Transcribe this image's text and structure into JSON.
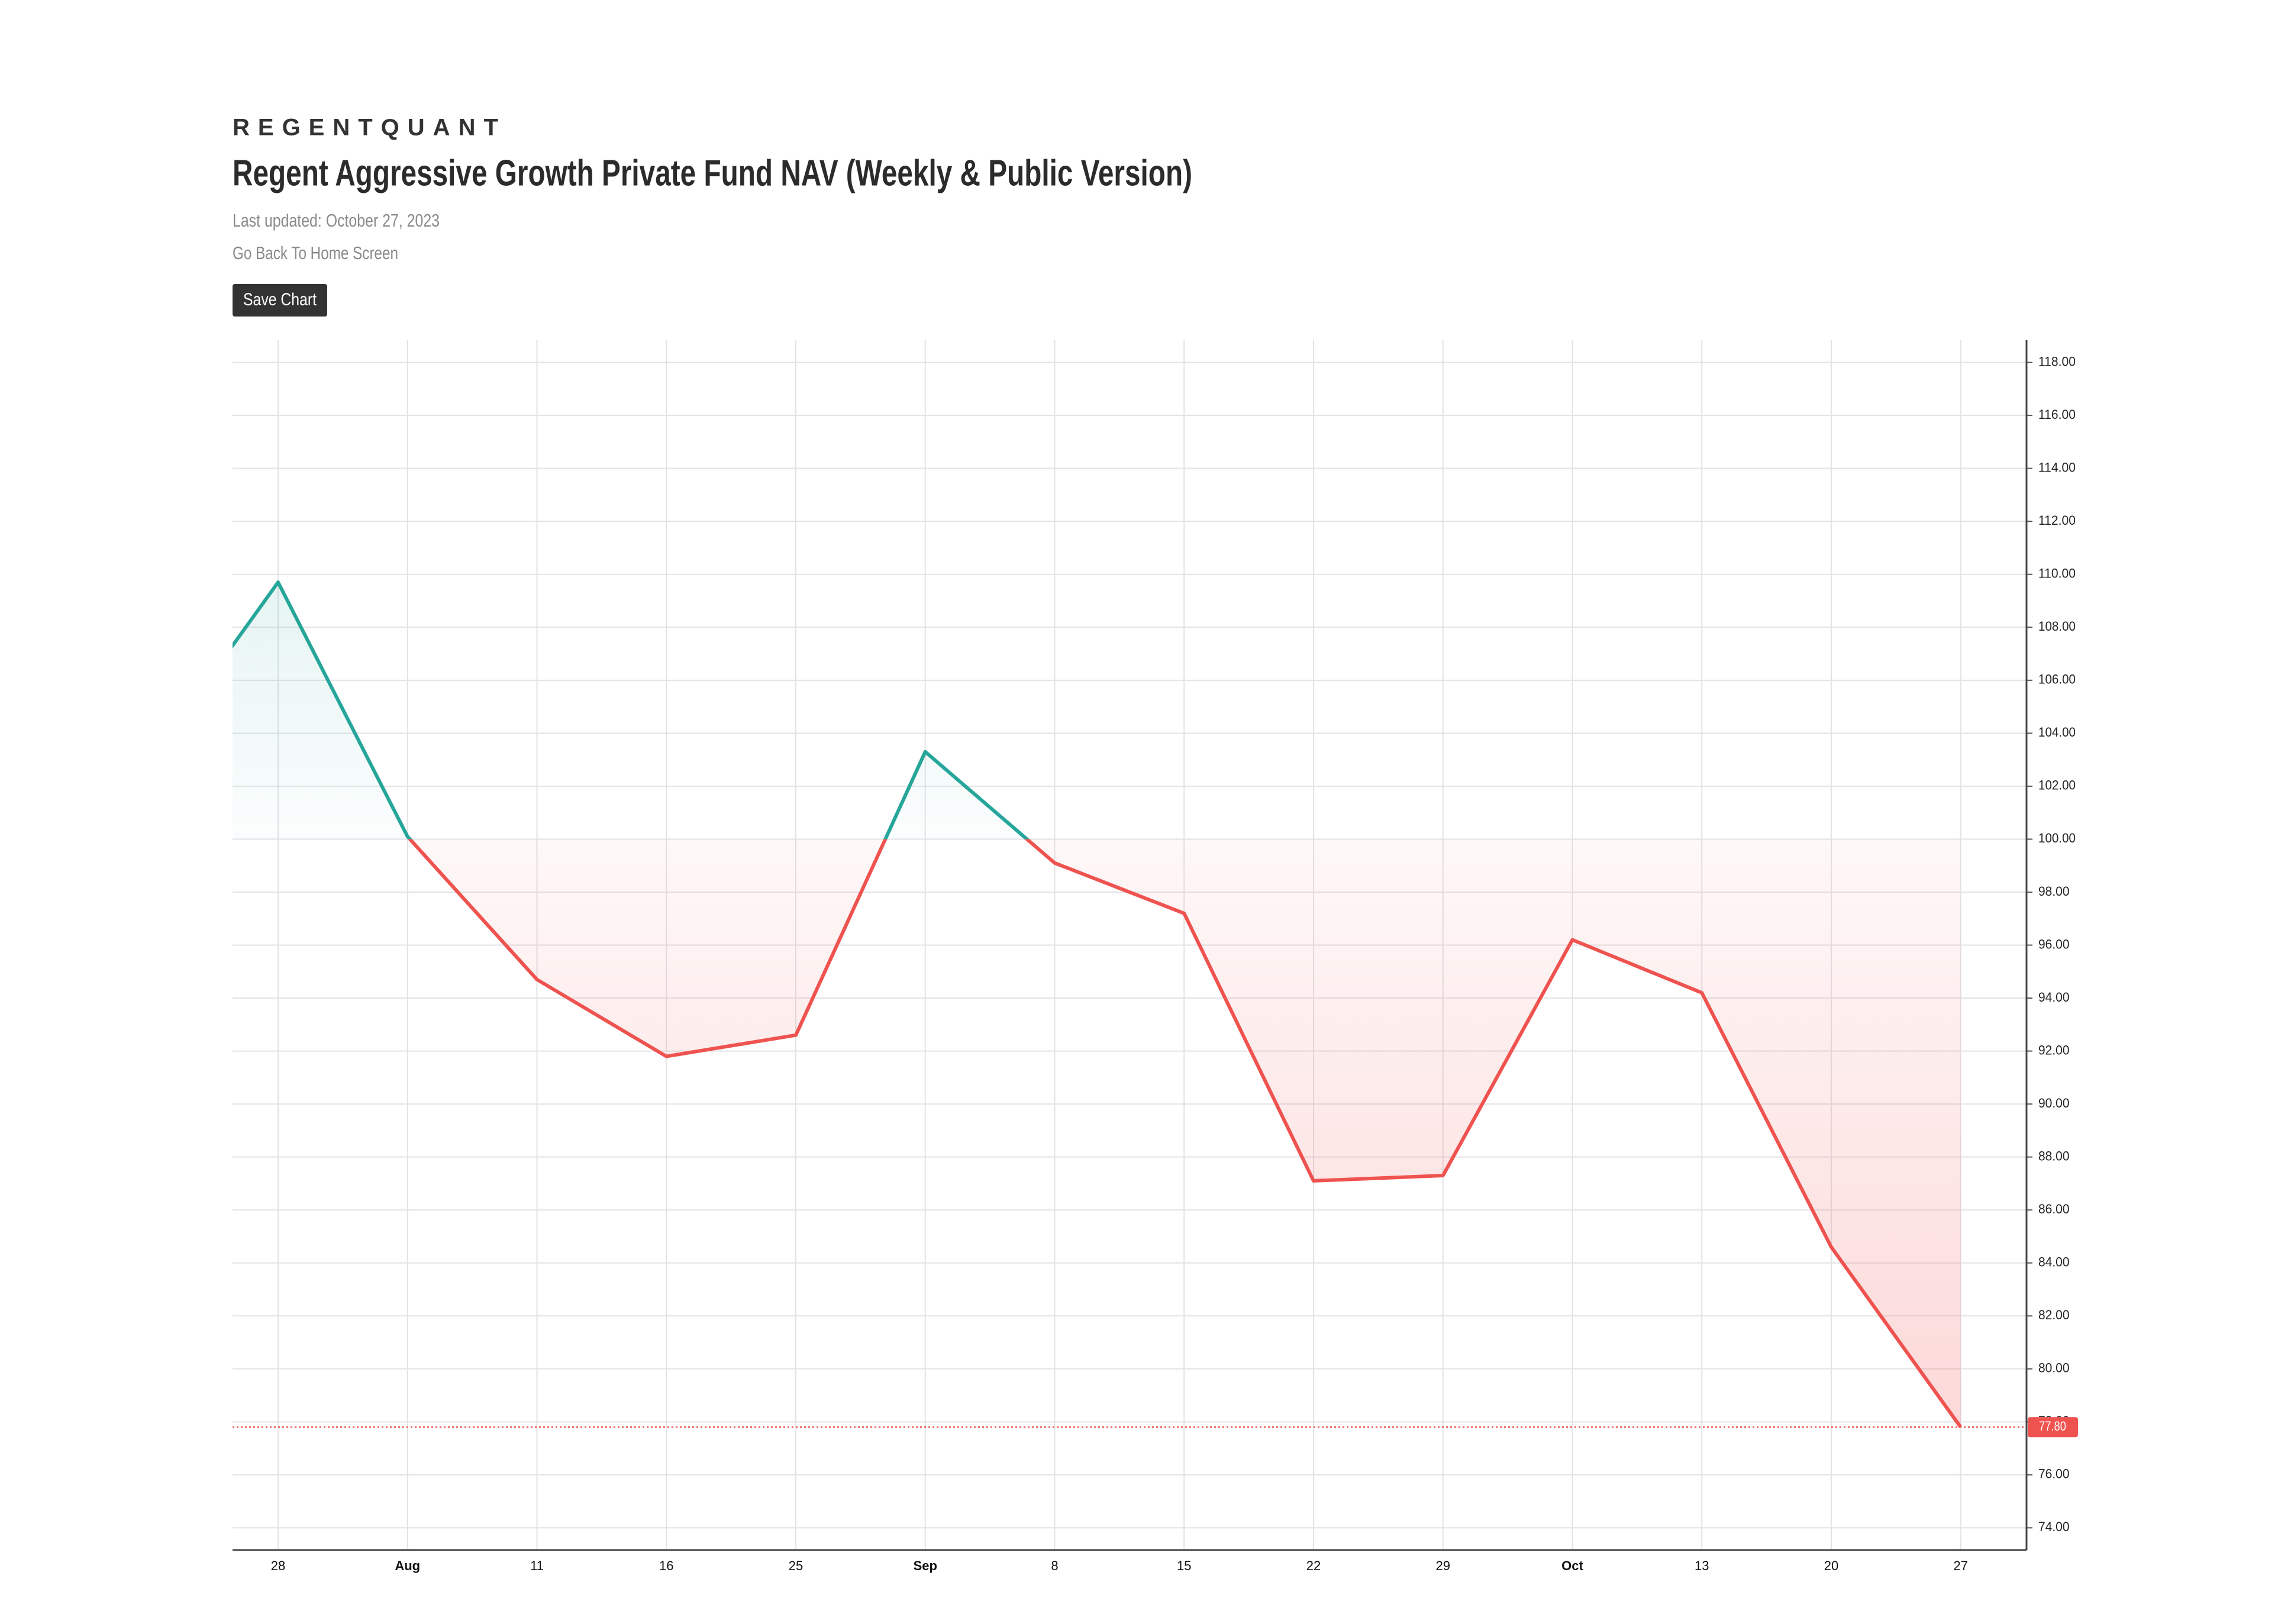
{
  "header": {
    "brand": "REGENTQUANT",
    "title": "Regent Aggressive Growth Private Fund NAV (Weekly & Public Version)",
    "updated": "Last updated: October 27, 2023",
    "back_link": "Go Back To Home Screen",
    "button": "Save Chart"
  },
  "chart_data": {
    "type": "baseline-area",
    "categories": [
      null,
      "28",
      "Aug",
      "11",
      "16",
      "25",
      "Sep",
      "8",
      "15",
      "22",
      "29",
      "Oct",
      "13",
      "20",
      "27"
    ],
    "values": [
      102.9,
      109.7,
      100.1,
      94.7,
      91.8,
      92.6,
      103.3,
      99.1,
      97.2,
      87.1,
      87.3,
      96.2,
      94.2,
      84.6,
      77.8
    ],
    "value_labels": [
      null,
      null,
      null,
      null,
      null,
      null,
      null,
      null,
      null,
      null,
      null,
      null,
      null,
      null,
      "77.80"
    ],
    "baseline": 100,
    "up_color": "#26a69a",
    "down_color": "#ef5350",
    "ylim": [
      73.16,
      118.84
    ],
    "yticks": [
      {
        "value": 74,
        "label": "74.00"
      },
      {
        "value": 76,
        "label": "76.00"
      },
      {
        "value": 78,
        "label": "78.00"
      },
      {
        "value": 80,
        "label": "80.00"
      },
      {
        "value": 82,
        "label": "82.00"
      },
      {
        "value": 84,
        "label": "84.00"
      },
      {
        "value": 86,
        "label": "86.00"
      },
      {
        "value": 88,
        "label": "88.00"
      },
      {
        "value": 90,
        "label": "90.00"
      },
      {
        "value": 92,
        "label": "92.00"
      },
      {
        "value": 94,
        "label": "94.00"
      },
      {
        "value": 96,
        "label": "96.00"
      },
      {
        "value": 98,
        "label": "98.00"
      },
      {
        "value": 100,
        "label": "100.00"
      },
      {
        "value": 102,
        "label": "102.00"
      },
      {
        "value": 104,
        "label": "104.00"
      },
      {
        "value": 106,
        "label": "106.00"
      },
      {
        "value": 108,
        "label": "108.00"
      },
      {
        "value": 110,
        "label": "110.00"
      },
      {
        "value": 112,
        "label": "112.00"
      },
      {
        "value": 114,
        "label": "114.00"
      },
      {
        "value": 116,
        "label": "116.00"
      },
      {
        "value": 118,
        "label": "118.00"
      }
    ],
    "grid": true
  }
}
